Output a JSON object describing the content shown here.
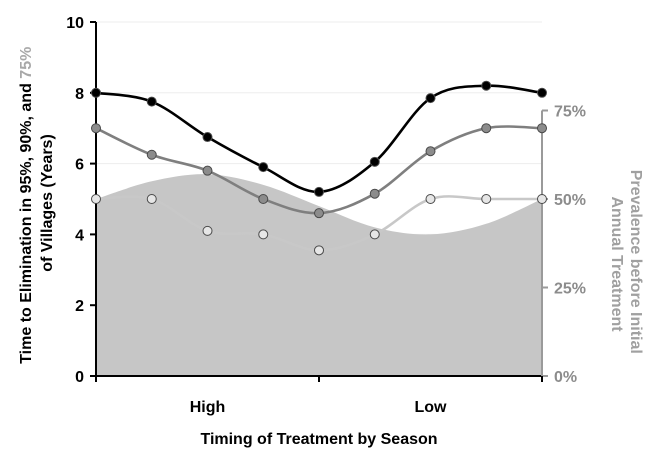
{
  "chart_data": {
    "type": "line",
    "xlabel": "Timing of Treatment by Season",
    "categories": [
      "High",
      "Low"
    ],
    "ylabel_left": {
      "line1_parts": [
        {
          "text": "Time to Elimination in 95%, 90%, and ",
          "color": "#000000"
        },
        {
          "text": "75%",
          "color": "#a8a8a8"
        }
      ],
      "line2": "of Villages (Years)"
    },
    "ylabel_right": [
      "Prevalence before Initial",
      "Annual Treatment"
    ],
    "ylim_left": [
      0,
      10
    ],
    "yticks_left": [
      "0",
      "2",
      "4",
      "6",
      "8",
      "10"
    ],
    "ylim_right_percent": [
      0,
      100
    ],
    "yticks_right": [
      "0%",
      "25%",
      "50%",
      "75%"
    ],
    "x": [
      0,
      1,
      2,
      3,
      4,
      5,
      6,
      7,
      8
    ],
    "x_range": [
      0,
      8
    ],
    "series": [
      {
        "id": "s95",
        "color": "#000000",
        "marker_fill": "#000000",
        "values": [
          8,
          7.75,
          6.75,
          5.9,
          5.2,
          6.05,
          7.85,
          8.2,
          8
        ]
      },
      {
        "id": "s90",
        "color": "#7f7f7f",
        "marker_fill": "#8c8c8c",
        "values": [
          7,
          6.25,
          5.8,
          5,
          4.6,
          5.15,
          6.35,
          7,
          7
        ]
      },
      {
        "id": "s75",
        "color": "#c8c8c8",
        "marker_fill": "#e6e6e6",
        "values": [
          5,
          5,
          4.1,
          4,
          3.55,
          4,
          5,
          5,
          5
        ]
      }
    ],
    "prevalence_area": {
      "color": "#c6c6c6",
      "x": [
        0,
        1,
        2,
        3,
        4,
        5,
        6,
        7,
        8
      ],
      "values_percent": [
        50,
        55,
        57,
        54,
        48,
        42,
        40,
        43,
        50
      ]
    }
  }
}
